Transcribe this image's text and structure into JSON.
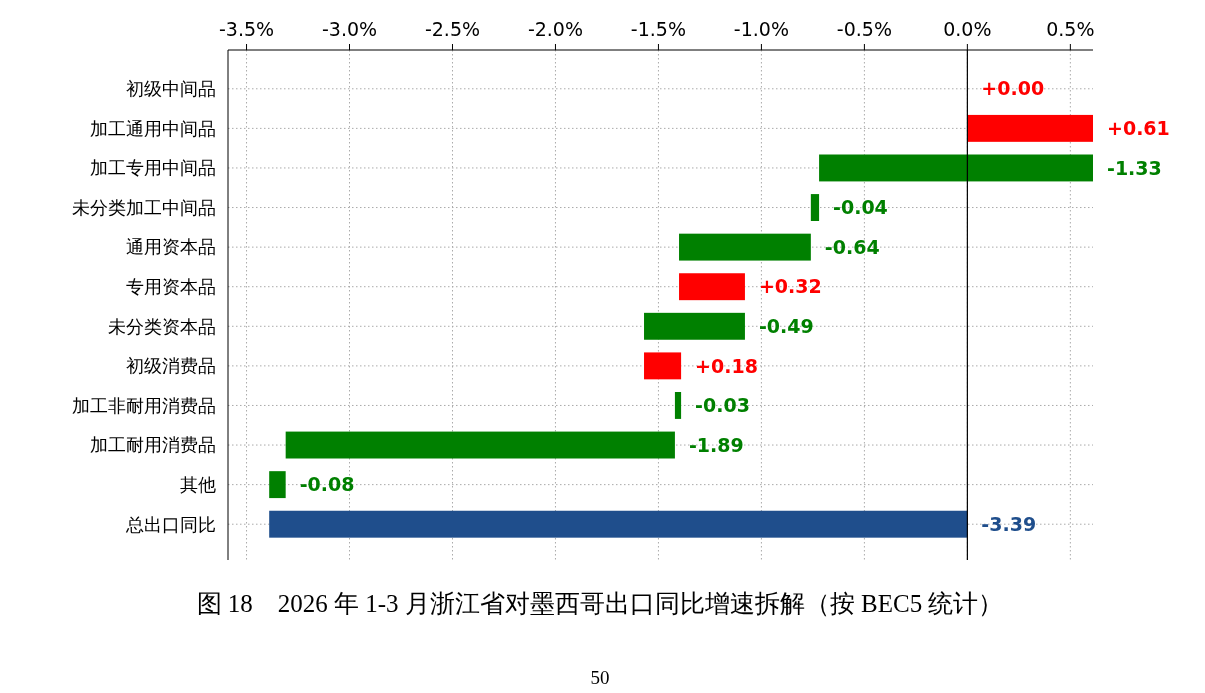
{
  "chart_data": {
    "type": "bar",
    "orientation": "horizontal",
    "title": "图 18　2026 年 1-3 月浙江省对墨西哥出口同比增速拆解（按 BEC5 统计）",
    "categories": [
      "初级中间品",
      "加工通用中间品",
      "加工专用中间品",
      "未分类加工中间品",
      "通用资本品",
      "专用资本品",
      "未分类资本品",
      "初级消费品",
      "加工非耐用消费品",
      "加工耐用消费品",
      "其他",
      "总出口同比"
    ],
    "values": [
      0.0,
      0.61,
      -1.33,
      -0.04,
      -0.64,
      0.32,
      -0.49,
      0.18,
      -0.03,
      -1.89,
      -0.08,
      -3.39
    ],
    "base": [
      null,
      0,
      0.61,
      -0.72,
      -0.76,
      -1.4,
      -1.08,
      -1.57,
      -1.39,
      -1.42,
      -3.31,
      0
    ],
    "value_labels": [
      "+0.00",
      "+0.61",
      "-1.33",
      "-0.04",
      "-0.64",
      "+0.32",
      "-0.49",
      "+0.18",
      "-0.03",
      "-1.89",
      "-0.08",
      "-3.39"
    ],
    "colors": [
      "#ff0000",
      "#ff0000",
      "#008000",
      "#008000",
      "#008000",
      "#ff0000",
      "#008000",
      "#ff0000",
      "#008000",
      "#008000",
      "#008000",
      "#1f4e8c"
    ],
    "xlim": [
      -3.59,
      0.61
    ],
    "xticks": [
      {
        "value": -3.5,
        "label": "-3.5%"
      },
      {
        "value": -3.0,
        "label": "-3.0%"
      },
      {
        "value": -2.5,
        "label": "-2.5%"
      },
      {
        "value": -2.0,
        "label": "-2.0%"
      },
      {
        "value": -1.5,
        "label": "-1.5%"
      },
      {
        "value": -1.0,
        "label": "-1.0%"
      },
      {
        "value": -0.5,
        "label": "-0.5%"
      },
      {
        "value": 0.0,
        "label": "0.0%"
      },
      {
        "value": 0.5,
        "label": "0.5%"
      }
    ],
    "ref_lines": [
      {
        "axis": "x",
        "value": 0,
        "color": "#000000"
      }
    ],
    "grid": true,
    "annotations": [
      "50"
    ]
  }
}
